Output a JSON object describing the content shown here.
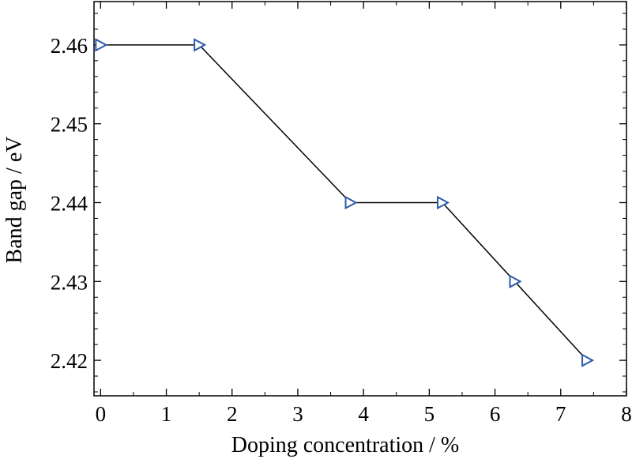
{
  "chart_data": {
    "type": "line",
    "title": "",
    "xlabel": "Doping concentration / %",
    "ylabel": "Band gap / eV",
    "xlim": [
      -0.1,
      8
    ],
    "ylim": [
      2.4155,
      2.4655
    ],
    "xticks": [
      0,
      1,
      2,
      3,
      4,
      5,
      6,
      7,
      8
    ],
    "xtick_labels": [
      "0",
      "1",
      "2",
      "3",
      "4",
      "5",
      "6",
      "7",
      "8"
    ],
    "yticks": [
      2.42,
      2.43,
      2.44,
      2.45,
      2.46
    ],
    "ytick_labels": [
      "2.42",
      "2.43",
      "2.44",
      "2.45",
      "2.46"
    ],
    "grid": false,
    "legend": "none",
    "series": [
      {
        "marker": "right-triangle",
        "marker_color": "#2b5aa8",
        "line_color": "#000000",
        "x": [
          0,
          1.5,
          3.8,
          5.2,
          6.3,
          7.4
        ],
        "y": [
          2.46,
          2.46,
          2.44,
          2.44,
          2.43,
          2.42
        ]
      }
    ]
  }
}
